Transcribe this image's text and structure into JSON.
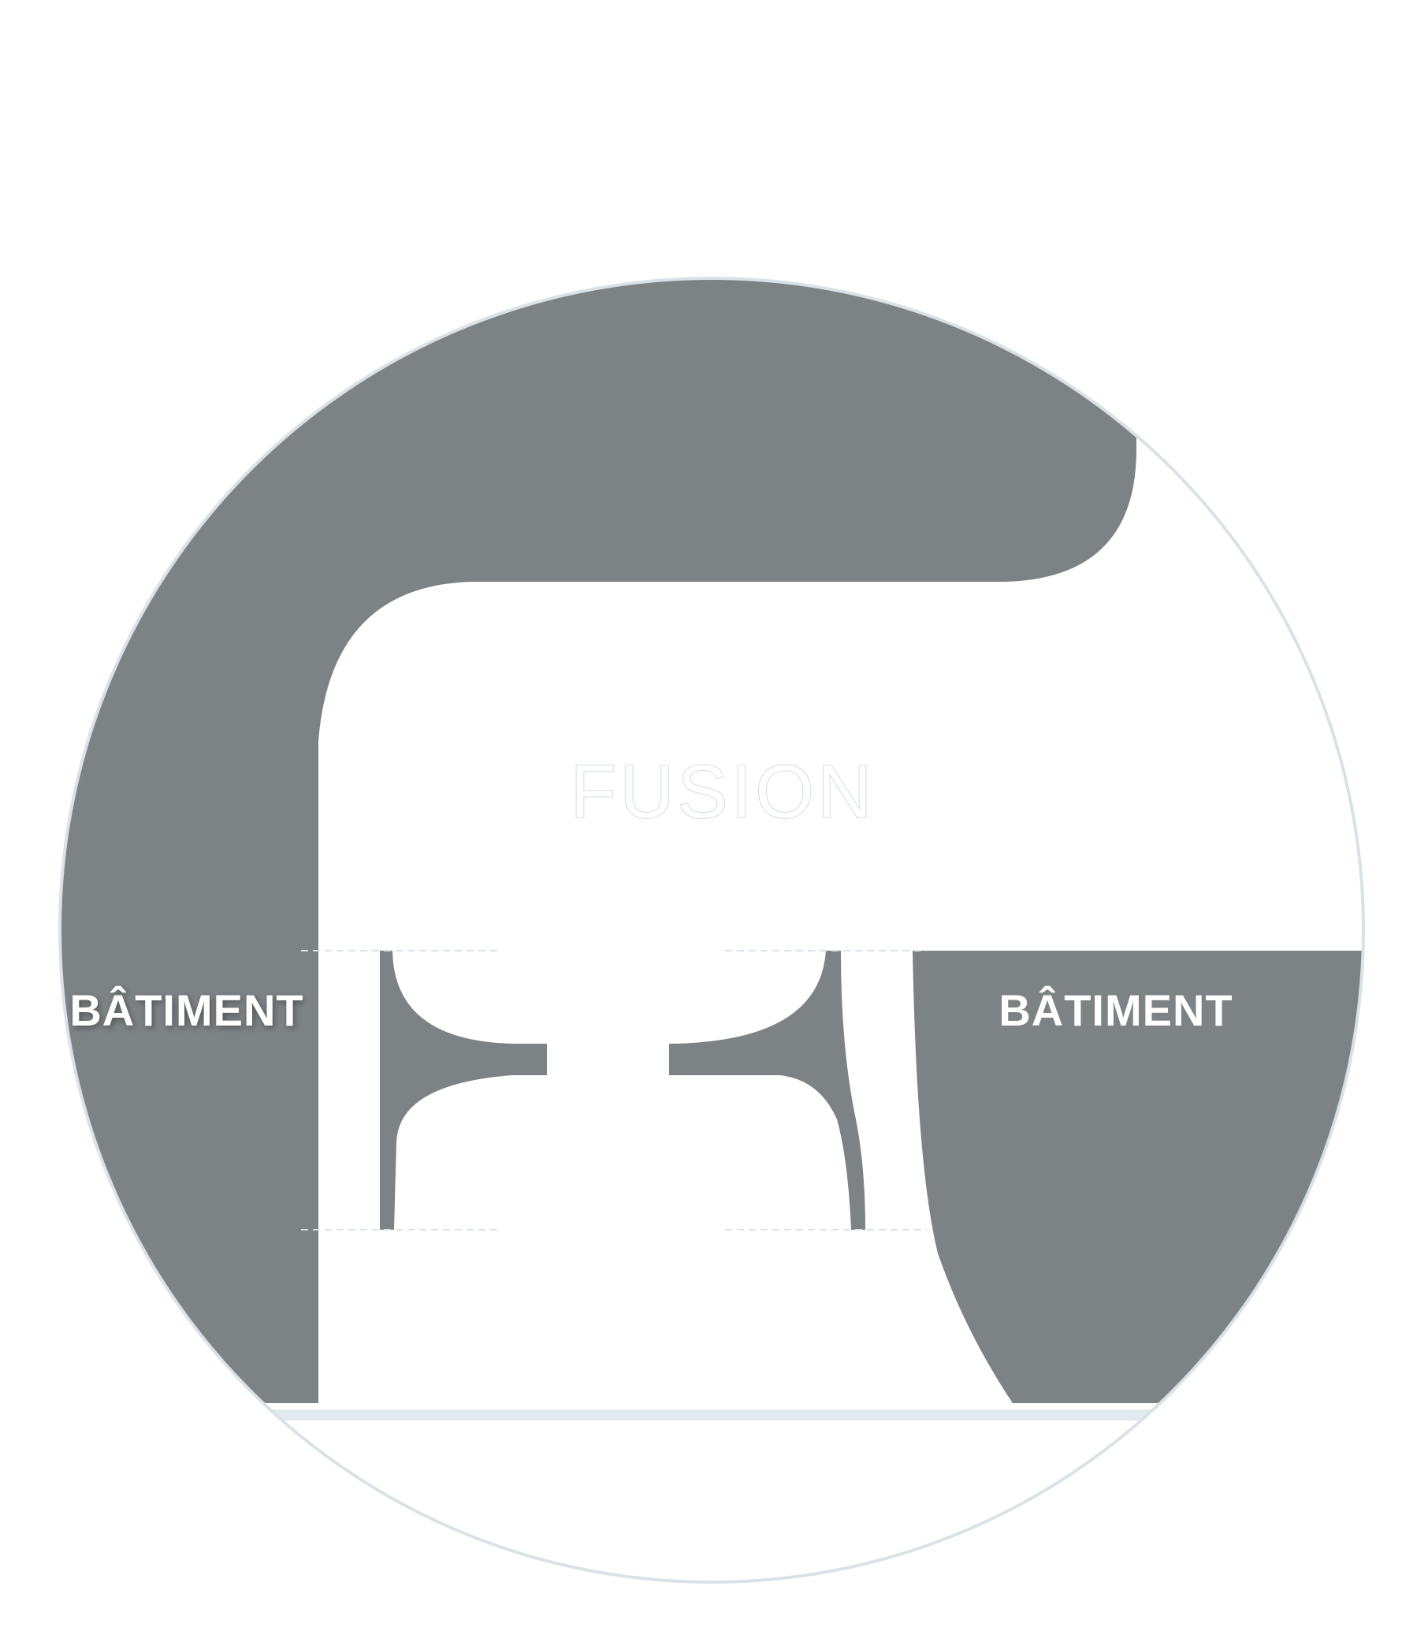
{
  "diagram": {
    "center_label": "FUSION",
    "left_label": "BÂTIMENT",
    "right_label": "BÂTIMENT"
  },
  "colors": {
    "shape_fill": "#7d8285",
    "background": "#ffffff",
    "circle_outline": "#d9e3e7",
    "guide_line": "#d9e3e7",
    "text": "#ffffff"
  }
}
